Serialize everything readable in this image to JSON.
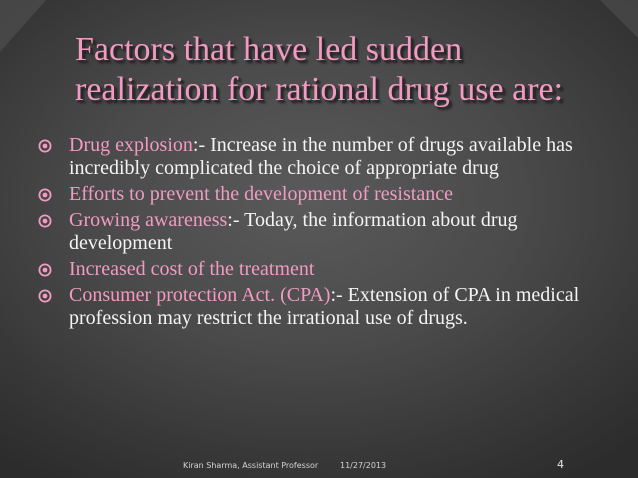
{
  "slide": {
    "title_lines": [
      "Factors that have led sudden",
      "realization for rational drug use are:"
    ],
    "bullets": [
      {
        "highlight": "Drug explosion",
        "text": ":- Increase in the number of drugs available has incredibly complicated the choice of appropriate drug"
      },
      {
        "highlight": "Efforts to prevent the development of resistance",
        "text": ""
      },
      {
        "highlight": "Growing awareness",
        "text": ":- Today, the information about drug development"
      },
      {
        "highlight": "Increased cost of the treatment",
        "text": ""
      },
      {
        "highlight": "Consumer protection Act. (CPA)",
        "text": ":- Extension of CPA in medical profession may restrict the irrational use of drugs."
      }
    ],
    "footer": {
      "author": "Kiran Sharma, Assistant Professor",
      "date": "11/27/2013",
      "page": "4"
    }
  },
  "colors": {
    "accent": "#f29bc2",
    "text": "#f4f4f4",
    "background": "#4a4a4a"
  },
  "icons": {
    "bullet": "circled-dot-icon"
  }
}
